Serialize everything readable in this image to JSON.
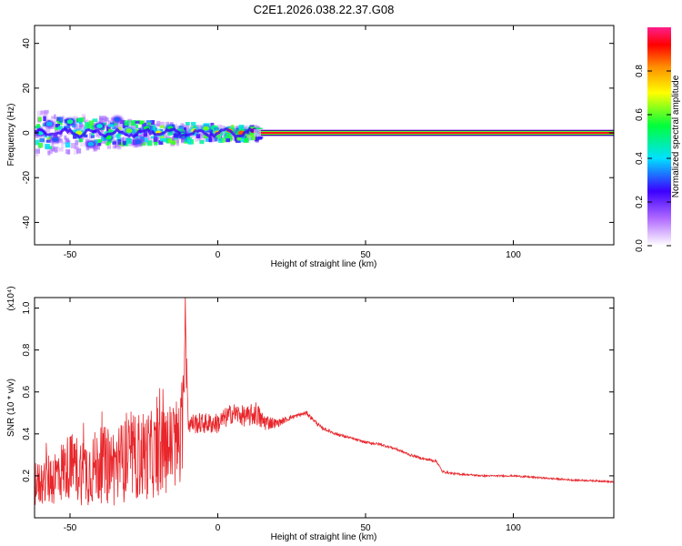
{
  "title": "C2E1.2026.038.22.37.G08",
  "chart_data": [
    {
      "type": "heatmap",
      "title": "C2E1.2026.038.22.37.G08",
      "xlabel": "Height of straight line (km)",
      "ylabel": "Frequency (Hz)",
      "xlim": [
        -62,
        134
      ],
      "ylim": [
        -50,
        48
      ],
      "xticks": [
        -50,
        0,
        50,
        100
      ],
      "xtick_labels": [
        "-50",
        "0",
        "50",
        "100"
      ],
      "yticks": [
        -40,
        -20,
        0,
        20,
        40
      ],
      "ytick_labels": [
        "-40",
        "-20",
        "0",
        "20",
        "40"
      ],
      "grid": false,
      "colorbar": {
        "label": "Normalized spectral amplitude",
        "range": [
          0,
          1
        ],
        "ticks": [
          0.0,
          0.2,
          0.4,
          0.6,
          0.8
        ],
        "tick_labels": [
          "0.0",
          "0.2",
          "0.4",
          "0.6",
          "0.8"
        ],
        "colormap": [
          "#ffffff",
          "#b46eff",
          "#3b00ff",
          "#00e1ff",
          "#00ff3a",
          "#ffff00",
          "#ff8c00",
          "#ff0000",
          "#ff1e8c"
        ]
      },
      "description_points": [
        {
          "x": -60,
          "y": 0,
          "amp": 0.4
        },
        {
          "x": -57,
          "y": 4,
          "amp": 0.35
        },
        {
          "x": -55,
          "y": -3,
          "amp": 0.3
        },
        {
          "x": -50,
          "y": 5,
          "amp": 0.45
        },
        {
          "x": -47,
          "y": 0,
          "amp": 0.6
        },
        {
          "x": -43,
          "y": -5,
          "amp": 0.35
        },
        {
          "x": -40,
          "y": 3,
          "amp": 0.4
        },
        {
          "x": -37,
          "y": -2,
          "amp": 0.5
        },
        {
          "x": -34,
          "y": 6,
          "amp": 0.3
        },
        {
          "x": -30,
          "y": 1,
          "amp": 0.55
        },
        {
          "x": -27,
          "y": -4,
          "amp": 0.3
        },
        {
          "x": -24,
          "y": 2,
          "amp": 0.5
        },
        {
          "x": -20,
          "y": 0,
          "amp": 0.65
        },
        {
          "x": -16,
          "y": 2,
          "amp": 0.5
        },
        {
          "x": -12,
          "y": -1,
          "amp": 0.45
        },
        {
          "x": -8,
          "y": 1,
          "amp": 0.6
        },
        {
          "x": -4,
          "y": 2,
          "amp": 0.55
        },
        {
          "x": 0,
          "y": 0,
          "amp": 0.7
        },
        {
          "x": 4,
          "y": 1,
          "amp": 0.75
        },
        {
          "x": 8,
          "y": 0,
          "amp": 0.8
        },
        {
          "x": 12,
          "y": 1,
          "amp": 0.85
        }
      ],
      "line_segment": {
        "x_start": 14,
        "x_end": 134,
        "y": 0,
        "amp": 0.9
      }
    },
    {
      "type": "line",
      "xlabel": "Height of straight line (km)",
      "ylabel": "SNR (10 * v/v)",
      "y_multiplier_label": "(x10⁴)",
      "xlim": [
        -62,
        134
      ],
      "ylim": [
        0,
        1.05
      ],
      "xticks": [
        -50,
        0,
        50,
        100
      ],
      "xtick_labels": [
        "-50",
        "0",
        "50",
        "100"
      ],
      "yticks": [
        0.2,
        0.4,
        0.6,
        0.8,
        1.0
      ],
      "ytick_labels": [
        "0.2",
        "0.4",
        "0.6",
        "0.8",
        "1.0"
      ],
      "grid": false,
      "color": "#e8262b",
      "x": [
        -62,
        -55,
        -50,
        -45,
        -40,
        -35,
        -30,
        -25,
        -20,
        -15,
        -12,
        -11,
        -10,
        -5,
        0,
        5,
        10,
        13,
        15,
        20,
        25,
        30,
        35,
        40,
        45,
        50,
        55,
        60,
        65,
        70,
        74,
        76,
        80,
        90,
        100,
        110,
        120,
        130,
        134
      ],
      "y": [
        0.15,
        0.2,
        0.25,
        0.22,
        0.25,
        0.25,
        0.28,
        0.3,
        0.3,
        0.35,
        0.35,
        1.05,
        0.45,
        0.45,
        0.45,
        0.5,
        0.48,
        0.5,
        0.46,
        0.45,
        0.48,
        0.5,
        0.43,
        0.4,
        0.38,
        0.36,
        0.35,
        0.33,
        0.3,
        0.28,
        0.27,
        0.22,
        0.21,
        0.2,
        0.2,
        0.19,
        0.18,
        0.175,
        0.17
      ],
      "noise_amplitude": [
        0.1,
        0.14,
        0.16,
        0.17,
        0.18,
        0.2,
        0.2,
        0.22,
        0.2,
        0.22,
        0.25,
        0.0,
        0.05,
        0.05,
        0.05,
        0.05,
        0.05,
        0.06,
        0.05,
        0.02,
        0.01,
        0.01,
        0.008,
        0.008,
        0.006,
        0.006,
        0.006,
        0.006,
        0.006,
        0.006,
        0.006,
        0.005,
        0.005,
        0.004,
        0.004,
        0.004,
        0.004,
        0.004,
        0.004
      ]
    }
  ]
}
